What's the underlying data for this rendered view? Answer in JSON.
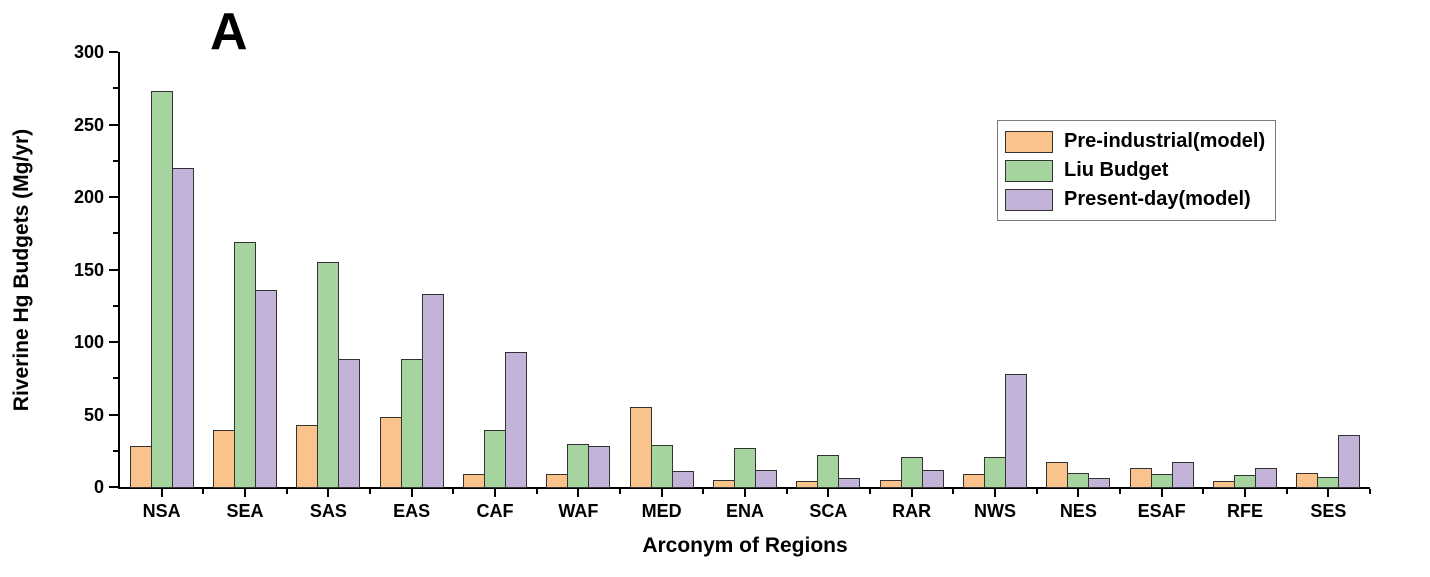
{
  "panel_label": "A",
  "chart_data": {
    "type": "bar",
    "title": "",
    "xlabel": "Arconym of Regions",
    "ylabel": "Riverine Hg Budgets (Mg/yr)",
    "ylim": [
      0,
      300
    ],
    "yticks": [
      0,
      50,
      100,
      150,
      200,
      250,
      300
    ],
    "y_minor_ticks": [
      25,
      75,
      125,
      175,
      225,
      275
    ],
    "grid": false,
    "legend_position": "top-right",
    "axis_color": "#000000",
    "bar_border_color": "#333333",
    "categories": [
      "NSA",
      "SEA",
      "SAS",
      "EAS",
      "CAF",
      "WAF",
      "MED",
      "ENA",
      "SCA",
      "RAR",
      "NWS",
      "NES",
      "ESAF",
      "RFE",
      "SES"
    ],
    "series": [
      {
        "name": "Pre-industrial(model)",
        "color": "#FAC38C",
        "values": [
          28,
          39,
          43,
          48,
          9,
          9,
          55,
          5,
          4,
          5,
          9,
          17,
          13,
          4,
          10
        ]
      },
      {
        "name": "Liu Budget",
        "color": "#A6D49F",
        "values": [
          273,
          169,
          155,
          88,
          39,
          30,
          29,
          27,
          22,
          21,
          21,
          10,
          9,
          8,
          7
        ]
      },
      {
        "name": "Present-day(model)",
        "color": "#C3B3D9",
        "values": [
          220,
          136,
          88,
          133,
          93,
          28,
          11,
          12,
          6,
          12,
          78,
          6,
          17,
          13,
          36
        ]
      }
    ]
  }
}
